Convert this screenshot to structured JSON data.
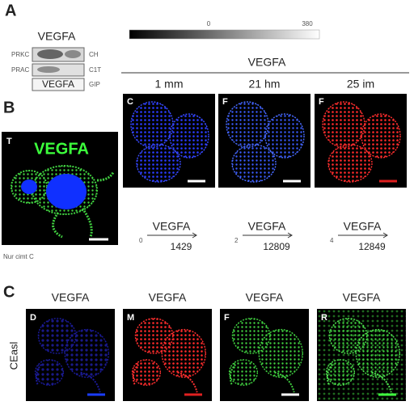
{
  "panel_a": {
    "label": "A",
    "blot": {
      "title": "VEGFA",
      "left_labels": [
        "PRKC",
        "PRAC"
      ],
      "right_labels": [
        "CH",
        "C1T",
        "GIP"
      ],
      "band_label": "VEGFA"
    },
    "colorbar": {
      "min": "0",
      "max": "380"
    },
    "heading": "VEGFA",
    "columns": [
      {
        "header": "1 mm",
        "letter": "C"
      },
      {
        "header": "21 hm",
        "letter": "F"
      },
      {
        "header": "25 im",
        "letter": "F"
      }
    ],
    "arrows": [
      {
        "start": "0",
        "label": "VEGFA",
        "value": "1429"
      },
      {
        "start": "2",
        "label": "VEGFA",
        "value": "12809"
      },
      {
        "start": "4",
        "label": "VEGFA",
        "value": "12849"
      }
    ]
  },
  "panel_b": {
    "label": "B",
    "letter": "T",
    "title": "VEGFA",
    "caption": "Nur cimt C"
  },
  "panel_c": {
    "label": "C",
    "row_label": "CEasl",
    "images": [
      {
        "title": "VEGFA",
        "letter": "D"
      },
      {
        "title": "VEGFA",
        "letter": "M"
      },
      {
        "title": "VEGFA",
        "letter": "F"
      },
      {
        "title": "VEGFA",
        "letter": "R"
      }
    ]
  }
}
